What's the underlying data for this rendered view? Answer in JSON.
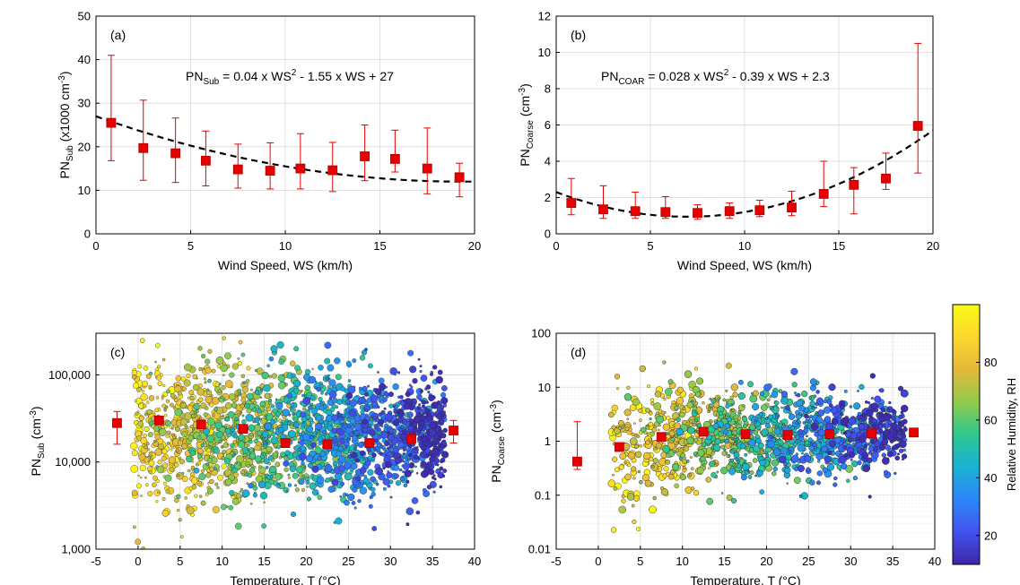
{
  "colors": {
    "marker": "#e60000",
    "errorbar": "#e60000",
    "fit": "#000000",
    "grid": "#d9d9d9",
    "colormap": [
      "#3e26a8",
      "#4352ef",
      "#2c87f9",
      "#1ab1d5",
      "#2fc78f",
      "#91ca4a",
      "#e4b83a",
      "#fcd72d",
      "#f9fb15"
    ]
  },
  "colorbar": {
    "label": "Relative Humidity, RH",
    "range": [
      10,
      100
    ],
    "ticks": [
      20,
      40,
      60,
      80
    ]
  },
  "chart_data": [
    {
      "id": "a",
      "type": "scatter",
      "panel_label": "(a)",
      "xlabel": "Wind Speed, WS (km/h)",
      "ylabel": {
        "main": "PN",
        "sub": "Sub",
        "rest": " (x1000 cm",
        "sup": "-3",
        "end": ")"
      },
      "xlim": [
        0,
        20
      ],
      "ylim": [
        0,
        50
      ],
      "xticks": [
        0,
        5,
        10,
        15,
        20
      ],
      "yticks": [
        0,
        10,
        20,
        30,
        40,
        50
      ],
      "grid": true,
      "equation": {
        "lhs": "PN",
        "sub": "Sub",
        "p1": " = 0.04 x WS",
        "sup": "2",
        "p2": " - 1.55 x WS + 27"
      },
      "fit": {
        "a": 0.04,
        "b": -1.55,
        "c": 27
      },
      "x": [
        0.8,
        2.5,
        4.2,
        5.8,
        7.5,
        9.2,
        10.8,
        12.5,
        14.2,
        15.8,
        17.5,
        19.2
      ],
      "y": [
        25.5,
        19.7,
        18.5,
        16.8,
        14.8,
        14.5,
        15.0,
        14.6,
        17.8,
        17.2,
        15.0,
        13.0
      ],
      "err_low": [
        16.8,
        12.3,
        11.8,
        11.0,
        10.5,
        10.3,
        10.3,
        9.7,
        12.2,
        14.2,
        9.2,
        8.5
      ],
      "err_high": [
        41.0,
        30.7,
        26.6,
        23.6,
        20.6,
        20.9,
        23.0,
        21.0,
        25.0,
        23.8,
        24.3,
        16.2
      ]
    },
    {
      "id": "b",
      "type": "scatter",
      "panel_label": "(b)",
      "xlabel": "Wind Speed, WS (km/h)",
      "ylabel": {
        "main": "PN",
        "sub": "Coarse",
        "rest": " (cm",
        "sup": "-3",
        "end": ")"
      },
      "xlim": [
        0,
        20
      ],
      "ylim": [
        0,
        12
      ],
      "xticks": [
        0,
        5,
        10,
        15,
        20
      ],
      "yticks": [
        0,
        2,
        4,
        6,
        8,
        10,
        12
      ],
      "grid": true,
      "equation": {
        "lhs": "PN",
        "sub": "COAR",
        "p1": " = 0.028 x WS",
        "sup": "2",
        "p2": " - 0.39 x WS + 2.3"
      },
      "fit": {
        "a": 0.028,
        "b": -0.39,
        "c": 2.3
      },
      "x": [
        0.8,
        2.5,
        4.2,
        5.8,
        7.5,
        9.2,
        10.8,
        12.5,
        14.2,
        15.8,
        17.5,
        19.2
      ],
      "y": [
        1.7,
        1.35,
        1.25,
        1.2,
        1.15,
        1.25,
        1.3,
        1.45,
        2.2,
        2.7,
        3.05,
        5.95
      ],
      "err_low": [
        1.05,
        0.85,
        0.85,
        0.85,
        0.8,
        0.85,
        0.95,
        1.0,
        1.5,
        1.1,
        2.45,
        3.35
      ],
      "err_high": [
        3.05,
        2.65,
        2.3,
        2.05,
        1.6,
        1.7,
        1.85,
        2.35,
        4.0,
        3.65,
        4.45,
        10.5
      ]
    },
    {
      "id": "c",
      "type": "scatter",
      "panel_label": "(c)",
      "xlabel": "Temperature, T (°C)",
      "ylabel": {
        "main": "PN",
        "sub": "Sub",
        "rest": " (cm",
        "sup": "-3",
        "end": ")"
      },
      "xlim": [
        -5,
        40
      ],
      "ylim": [
        1000,
        300000
      ],
      "yscale": "log",
      "xticks": [
        -5,
        0,
        5,
        10,
        15,
        20,
        25,
        30,
        35,
        40
      ],
      "yticks": [
        1000,
        10000,
        100000
      ],
      "ytick_labels": [
        "1,000",
        "10,000",
        "100,000"
      ],
      "grid": true,
      "x": [
        -2.5,
        2.5,
        7.5,
        12.5,
        17.5,
        22.5,
        27.5,
        32.5,
        37.5
      ],
      "y": [
        28000,
        30000,
        27000,
        24000,
        16500,
        16000,
        16500,
        18500,
        23000
      ],
      "err_low": [
        16000,
        30000,
        27000,
        24000,
        16500,
        16000,
        16500,
        18500,
        16500
      ],
      "err_high": [
        38000,
        30000,
        27000,
        24000,
        16500,
        16000,
        16500,
        18500,
        30000
      ],
      "cloud": {
        "x_range": [
          -0.5,
          36.5
        ],
        "center_at_xlim": [
          22000,
          20000
        ],
        "spread_decades": 0.28
      }
    },
    {
      "id": "d",
      "type": "scatter",
      "panel_label": "(d)",
      "xlabel": "Temperature, T (°C)",
      "ylabel": {
        "main": "PN",
        "sub": "Coarse",
        "rest": " (cm",
        "sup": "-3",
        "end": ")"
      },
      "xlim": [
        -5,
        40
      ],
      "ylim": [
        0.01,
        100
      ],
      "yscale": "log",
      "xticks": [
        -5,
        0,
        5,
        10,
        15,
        20,
        25,
        30,
        35,
        40
      ],
      "yticks": [
        0.01,
        0.1,
        1,
        10,
        100
      ],
      "ytick_labels": [
        "0.01",
        "0.1",
        "1",
        "10",
        "100"
      ],
      "grid": true,
      "x": [
        -2.5,
        2.5,
        7.5,
        12.5,
        17.5,
        22.5,
        27.5,
        32.5,
        37.5
      ],
      "y": [
        0.42,
        0.78,
        1.2,
        1.5,
        1.35,
        1.3,
        1.35,
        1.4,
        1.45
      ],
      "err_low": [
        0.3,
        0.78,
        1.2,
        1.5,
        1.35,
        1.3,
        1.35,
        1.4,
        1.45
      ],
      "err_high": [
        2.3,
        0.78,
        1.2,
        1.5,
        1.35,
        1.3,
        1.35,
        1.4,
        1.45
      ],
      "cloud": {
        "x_range": [
          1.5,
          36.5
        ],
        "center_at_xlim": [
          1.2,
          1.4
        ],
        "spread_decades": 0.32
      }
    }
  ]
}
